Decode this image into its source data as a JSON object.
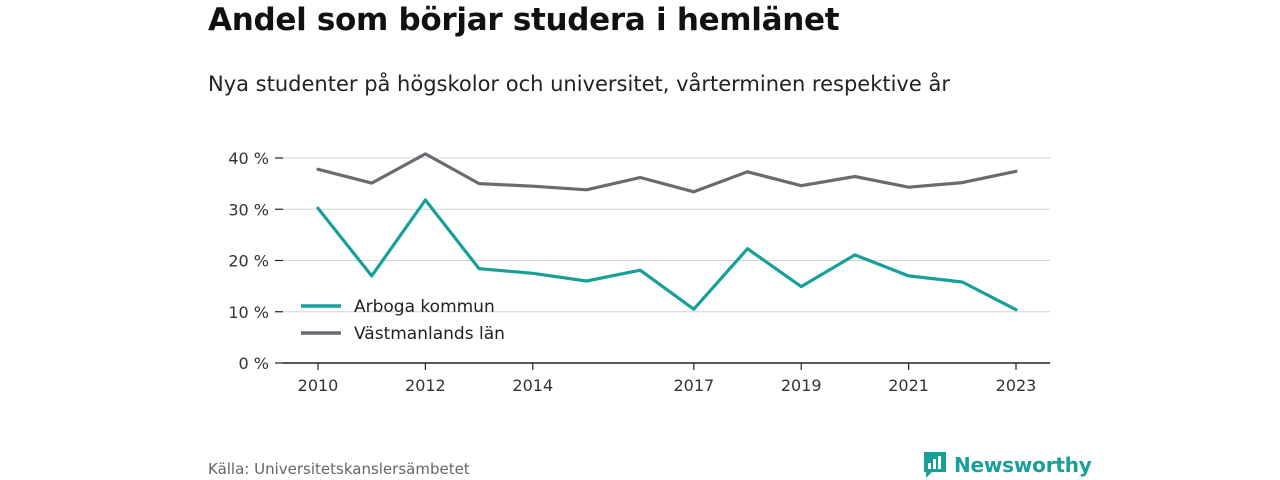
{
  "title": "Andel som börjar studera i hemlänet",
  "subtitle": "Nya studenter på högskolor och universitet, vårterminen respektive år",
  "source": "Källa: Universitetskanslersämbetet",
  "brand": {
    "name": "Newsworthy",
    "icon": "bar-chart-logo-icon",
    "color": "#17a099"
  },
  "chart_data": {
    "type": "line",
    "x": [
      2010,
      2011,
      2012,
      2013,
      2014,
      2015,
      2016,
      2017,
      2018,
      2019,
      2020,
      2021,
      2022,
      2023
    ],
    "x_ticks": [
      "2010",
      "2012",
      "2014",
      "2017",
      "2019",
      "2021",
      "2023"
    ],
    "y_ticks": [
      "0 %",
      "10 %",
      "20 %",
      "30 %",
      "40 %"
    ],
    "ylim": [
      0,
      40
    ],
    "xlim": [
      2010,
      2023
    ],
    "grid": true,
    "legend_position": "bottom-left",
    "series": [
      {
        "name": "Arboga kommun",
        "color": "#17a099",
        "values": [
          30.2,
          17.0,
          31.8,
          18.4,
          17.5,
          16.0,
          18.1,
          10.5,
          22.3,
          14.9,
          21.1,
          17.0,
          15.8,
          10.4
        ]
      },
      {
        "name": "Västmanlands län",
        "color": "#6b6a70",
        "values": [
          37.8,
          35.1,
          40.8,
          35.0,
          34.5,
          33.8,
          36.2,
          33.4,
          37.3,
          34.6,
          36.4,
          34.3,
          35.2,
          37.4
        ]
      }
    ]
  }
}
